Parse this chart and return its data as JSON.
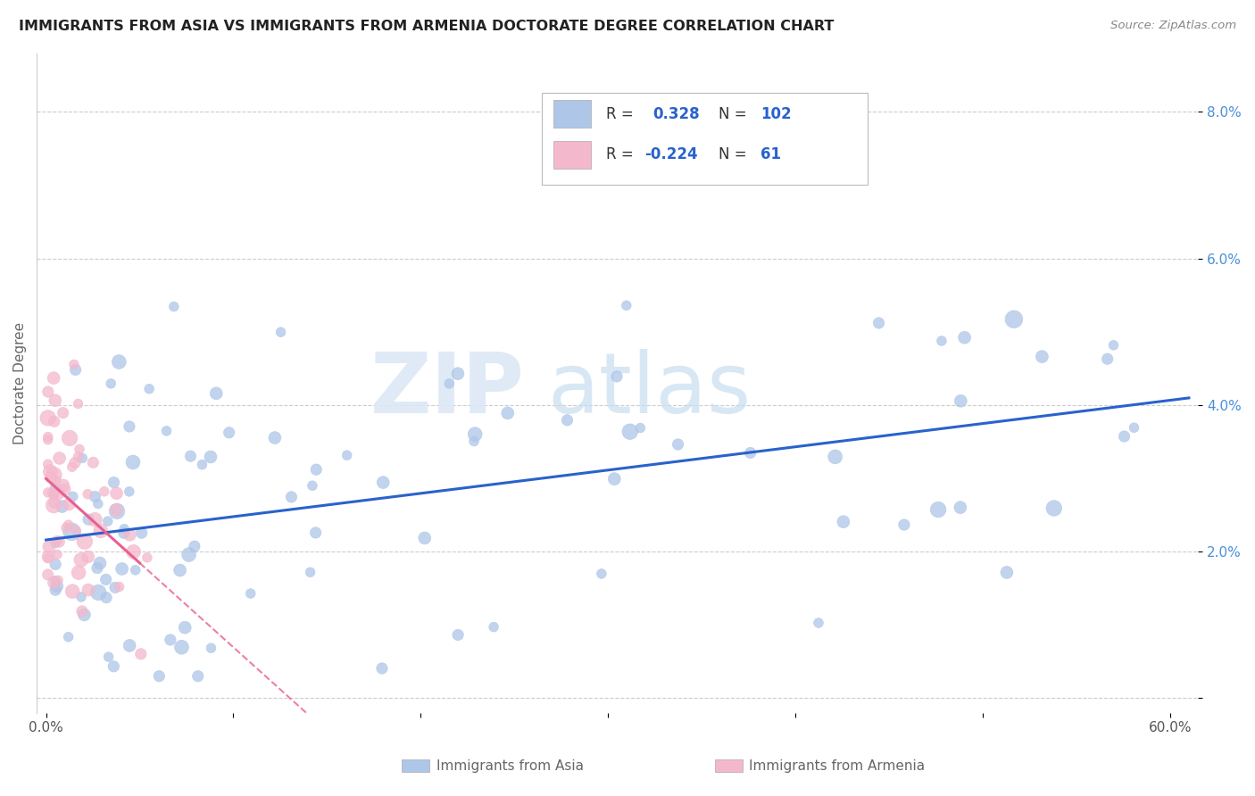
{
  "title": "IMMIGRANTS FROM ASIA VS IMMIGRANTS FROM ARMENIA DOCTORATE DEGREE CORRELATION CHART",
  "source_text": "Source: ZipAtlas.com",
  "ylabel": "Doctorate Degree",
  "legend_r_asia": "0.328",
  "legend_n_asia": "102",
  "legend_r_armenia": "-0.224",
  "legend_n_armenia": "61",
  "color_asia": "#aec6e8",
  "color_armenia": "#f4b8cc",
  "line_color_asia": "#2962cc",
  "line_color_armenia": "#e86090",
  "background_color": "#ffffff",
  "grid_color": "#cccccc",
  "watermark_zip": "ZIP",
  "watermark_atlas": "atlas",
  "legend_color": "#2962cc",
  "title_color": "#222222",
  "source_color": "#888888",
  "yaxis_color": "#4a90d9"
}
